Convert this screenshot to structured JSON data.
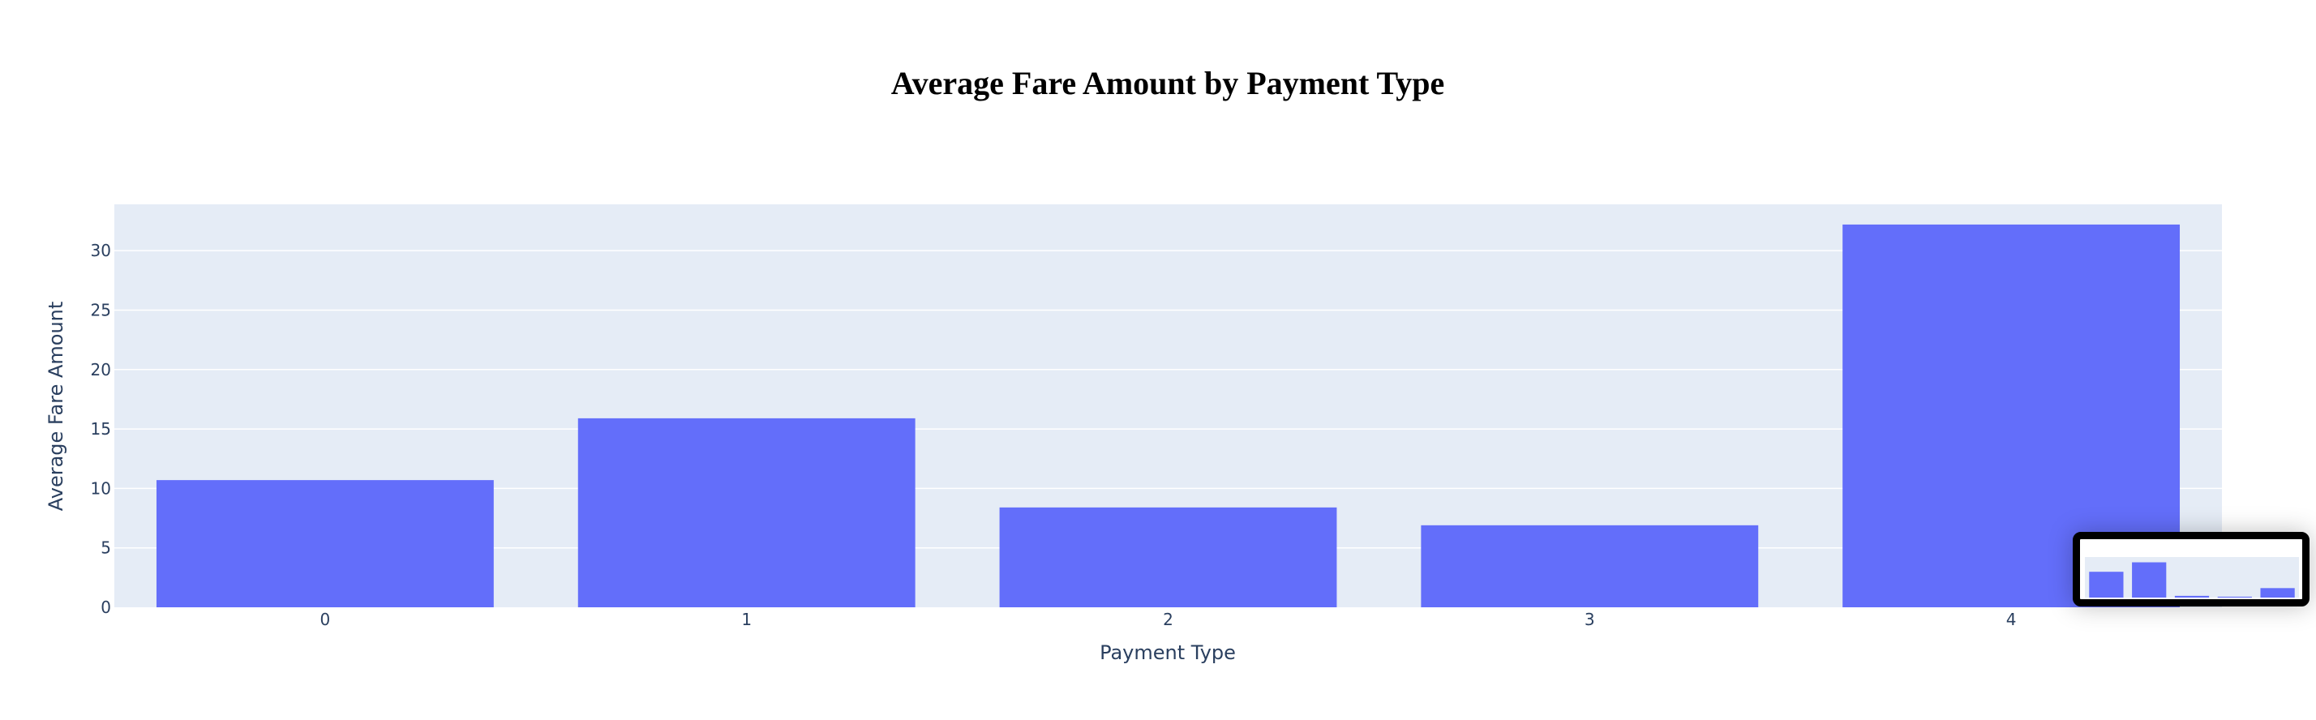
{
  "chart_data": {
    "type": "bar",
    "title": "Average Fare Amount by Payment Type",
    "xlabel": "Payment Type",
    "ylabel": "Average Fare Amount",
    "categories": [
      "0",
      "1",
      "2",
      "3",
      "4"
    ],
    "values": [
      10.7,
      15.9,
      8.4,
      6.9,
      32.2
    ],
    "ylim": [
      0,
      33.9
    ],
    "yticks": [
      0,
      5,
      10,
      15,
      20,
      25,
      30
    ],
    "grid": true,
    "colors": {
      "bar": "#636efa",
      "plot_bg": "#e5ecf6",
      "grid": "#ffffff"
    }
  },
  "thumbnail": {
    "values": [
      3.0,
      4.1,
      0.2,
      0.1,
      1.1
    ],
    "colors": {
      "bar": "#636efa",
      "plot_bg": "#e5ecf6"
    }
  }
}
